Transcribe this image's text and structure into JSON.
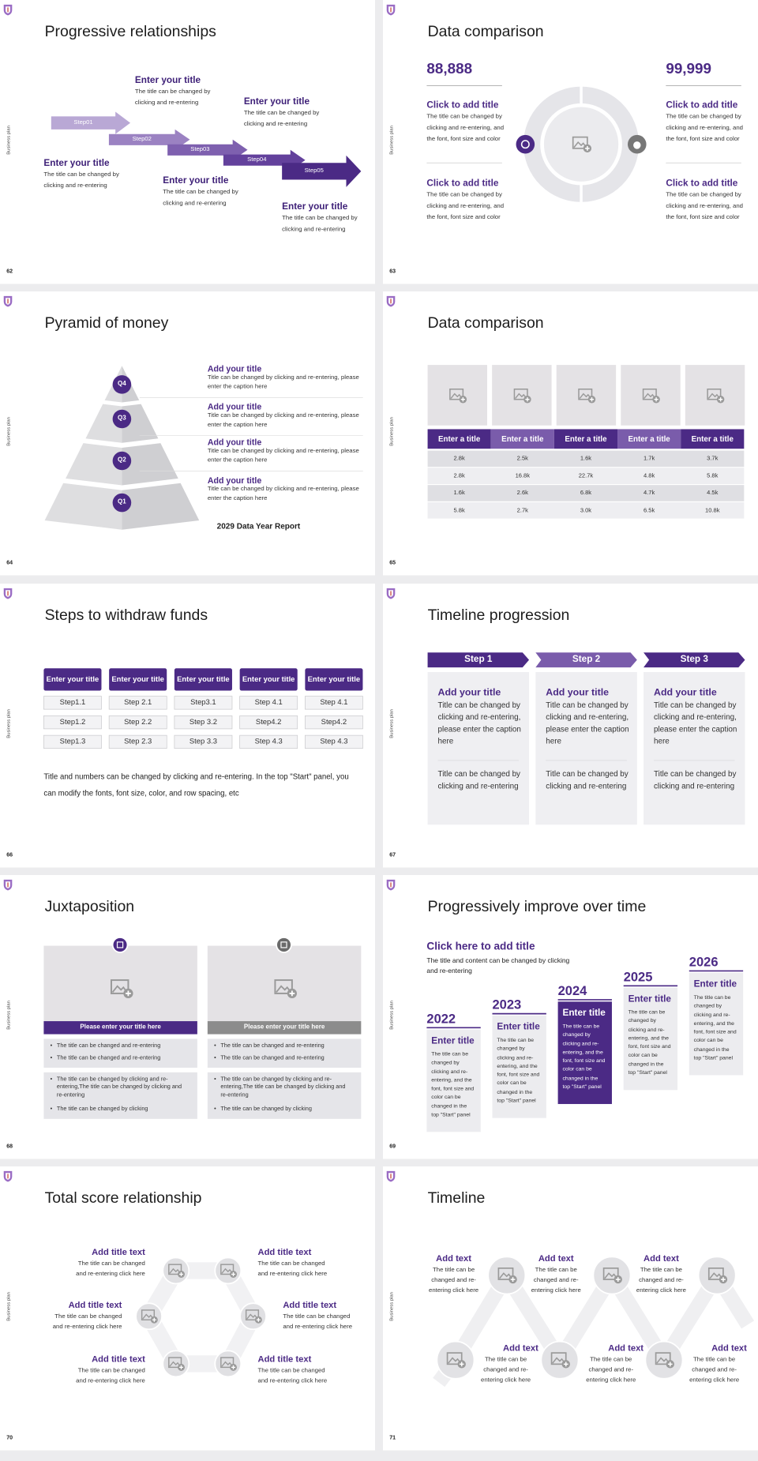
{
  "side_label": "Business plan",
  "slides": [
    {
      "number": "62",
      "title": "Progressive relationships",
      "steps": [
        {
          "label": "Step01",
          "title": "Enter your title",
          "text": "The title can be changed by clicking and re-entering"
        },
        {
          "label": "Step02",
          "title": "Enter your title",
          "text": "The title can be changed by clicking and re-entering"
        },
        {
          "label": "Step03",
          "title": "Enter your title",
          "text": "The title can be changed by clicking and re-entering"
        },
        {
          "label": "Step04",
          "title": "Enter your title",
          "text": "The title can be changed by clicking and re-entering"
        },
        {
          "label": "Step05",
          "title": "Enter your title",
          "text": "The title can be changed by clicking and re-entering"
        }
      ]
    },
    {
      "number": "63",
      "title": "Data comparison",
      "left": {
        "value": "88,888",
        "items": [
          {
            "title": "Click to add title",
            "text": "The title can be changed by clicking and re-entering, and the font, font size and color"
          },
          {
            "title": "Click to add title",
            "text": "The title can be changed by clicking and re-entering, and the font, font size and color"
          }
        ]
      },
      "right": {
        "value": "99,999",
        "items": [
          {
            "title": "Click to add title",
            "text": "The title can be changed by clicking and re-entering, and the font, font size and color"
          },
          {
            "title": "Click to add title",
            "text": "The title can be changed by clicking and re-entering, and the font, font size and color"
          }
        ]
      }
    },
    {
      "number": "64",
      "title": "Pyramid of money",
      "levels": [
        {
          "label": "Q4",
          "title": "Add your title",
          "text": "Title can be changed by clicking and re-entering, please enter the caption here"
        },
        {
          "label": "Q3",
          "title": "Add your title",
          "text": "Title can be changed by clicking and re-entering, please enter the caption here"
        },
        {
          "label": "Q2",
          "title": "Add your title",
          "text": "Title can be changed by clicking and re-entering, please enter the caption here"
        },
        {
          "label": "Q1",
          "title": "Add your title",
          "text": "Title can be changed by clicking and re-entering, please enter the caption here"
        }
      ],
      "caption": "2029 Data Year Report"
    },
    {
      "number": "65",
      "title": "Data comparison",
      "table": {
        "header": [
          "Enter a title",
          "Enter a title",
          "Enter a title",
          "Enter a title",
          "Enter a title"
        ],
        "rows": [
          [
            "2.8k",
            "2.5k",
            "1.6k",
            "1.7k",
            "3.7k"
          ],
          [
            "2.8k",
            "16.8k",
            "22.7k",
            "4.8k",
            "5.8k"
          ],
          [
            "1.6k",
            "2.6k",
            "6.8k",
            "4.7k",
            "4.5k"
          ],
          [
            "5.8k",
            "2.7k",
            "3.0k",
            "6.5k",
            "10.8k"
          ]
        ]
      }
    },
    {
      "number": "66",
      "title": "Steps to withdraw funds",
      "columns": [
        {
          "title": "Enter your title",
          "items": [
            "Step1.1",
            "Step1.2",
            "Step1.3"
          ]
        },
        {
          "title": "Enter your title",
          "items": [
            "Step 2.1",
            "Step 2.2",
            "Step 2.3"
          ]
        },
        {
          "title": "Enter your title",
          "items": [
            "Step3.1",
            "Step 3.2",
            "Step 3.3"
          ]
        },
        {
          "title": "Enter your title",
          "items": [
            "Step 4.1",
            "Step4.2",
            "Step 4.3"
          ]
        },
        {
          "title": "Enter your title",
          "items": [
            "Step 4.1",
            "Step4.2",
            "Step 4.3"
          ]
        }
      ],
      "note": "Title and numbers can be changed by clicking and re-entering. In the top \"Start\" panel, you can modify the fonts, font size, color, and row spacing, etc"
    },
    {
      "number": "67",
      "title": "Timeline progression",
      "steps": [
        {
          "label": "Step 1",
          "title": "Add your title",
          "text": "Title can be changed by clicking and re-entering, please enter the caption here",
          "note": "Title can be changed by clicking and re-entering"
        },
        {
          "label": "Step 2",
          "title": "Add your title",
          "text": "Title can be changed by clicking and re-entering, please enter the caption here",
          "note": "Title can be changed by clicking and re-entering"
        },
        {
          "label": "Step 3",
          "title": "Add your title",
          "text": "Title can be changed by clicking and re-entering, please enter the caption here",
          "note": "Title can be changed by clicking and re-entering"
        }
      ]
    },
    {
      "number": "68",
      "title": "Juxtaposition",
      "panels": [
        {
          "title": "Please enter your title here",
          "items": [
            "The title can be changed and re-entering",
            "The title can be changed and re-entering"
          ],
          "details": [
            "The title can be changed by clicking and re-entering,The title can be changed by clicking and re-entering",
            "The title can be changed by clicking"
          ]
        },
        {
          "title": "Please enter your title here",
          "items": [
            "The title can be changed and re-entering",
            "The title can be changed and re-entering"
          ],
          "details": [
            "The title can be changed by clicking and re-entering,The title can be changed by clicking and re-entering",
            "The title can be changed by clicking"
          ]
        }
      ]
    },
    {
      "number": "69",
      "title": "Progressively improve over time",
      "heading": "Click here to add title",
      "subheading": "The title and content can be changed by clicking and re-entering",
      "years": [
        {
          "year": "2022",
          "title": "Enter title",
          "text": "The title can be changed by clicking and re-entering, and the font, font size and color can be changed in the top \"Start\" panel"
        },
        {
          "year": "2023",
          "title": "Enter title",
          "text": "The title can be changed by clicking and re-entering, and the font, font size and color can be changed in the top \"Start\" panel"
        },
        {
          "year": "2024",
          "title": "Enter title",
          "text": "The title can be changed by clicking and re-entering, and the font, font size and color can be changed in the top \"Start\" panel"
        },
        {
          "year": "2025",
          "title": "Enter title",
          "text": "The title can be changed by clicking and re-entering, and the font, font size and color can be changed in the top \"Start\" panel"
        },
        {
          "year": "2026",
          "title": "Enter title",
          "text": "The title can be changed by clicking and re-entering, and the font, font size and color can be changed in the top \"Start\" panel"
        }
      ]
    },
    {
      "number": "70",
      "title": "Total score relationship",
      "items": [
        {
          "title": "Add title text",
          "text": "The title can be changed and re-entering click here"
        },
        {
          "title": "Add title text",
          "text": "The title can be changed and re-entering click here"
        },
        {
          "title": "Add title text",
          "text": "The title can be changed and re-entering click here"
        },
        {
          "title": "Add title text",
          "text": "The title can be changed and re-entering click here"
        },
        {
          "title": "Add title text",
          "text": "The title can be changed and re-entering click here"
        },
        {
          "title": "Add title text",
          "text": "The title can be changed and re-entering click here"
        }
      ]
    },
    {
      "number": "71",
      "title": "Timeline",
      "items": [
        {
          "title": "Add text",
          "text": "The title can be changed and re-entering click here"
        },
        {
          "title": "Add text",
          "text": "The title can be changed and re-entering click here"
        },
        {
          "title": "Add text",
          "text": "The title can be changed and re-entering click here"
        },
        {
          "title": "Add text",
          "text": "The title can be changed and re-entering click here"
        },
        {
          "title": "Add text",
          "text": "The title can be changed and re-entering click here"
        },
        {
          "title": "Add text",
          "text": "The title can be changed and re-entering click here"
        }
      ]
    }
  ]
}
